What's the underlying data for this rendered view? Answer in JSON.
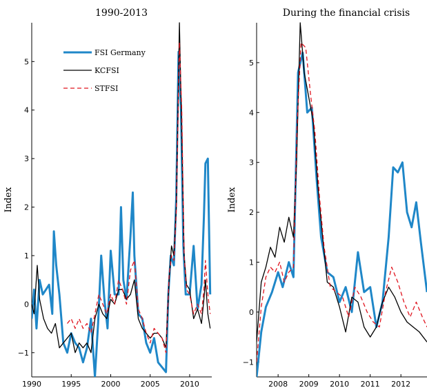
{
  "chart_data": [
    {
      "type": "line",
      "title": "1990-2013",
      "xlabel": "",
      "ylabel": "Index",
      "xlim": [
        1990,
        2012.8
      ],
      "ylim": [
        -1.5,
        5.8
      ],
      "xticks": [
        1990,
        1995,
        2000,
        2005,
        2010
      ],
      "yticks": [
        -1,
        0,
        1,
        2,
        3,
        4,
        5
      ],
      "ytick_labels": [
        "−1",
        "0",
        "1",
        "2",
        "3",
        "4",
        "5"
      ],
      "legend_position": "top-center",
      "series": [
        {
          "name": "FSI Germany",
          "color": "#1f87c8",
          "style": "solid-thick",
          "x": [
            1990.0,
            1990.3,
            1990.6,
            1991.0,
            1991.4,
            1991.8,
            1992.2,
            1992.6,
            1992.8,
            1993.1,
            1993.5,
            1994.0,
            1994.5,
            1995.0,
            1995.5,
            1996.0,
            1996.5,
            1997.0,
            1997.5,
            1998.0,
            1998.4,
            1998.8,
            1999.2,
            1999.6,
            2000.0,
            2000.5,
            2001.0,
            2001.3,
            2001.6,
            2002.0,
            2002.5,
            2002.8,
            2003.0,
            2003.5,
            2004.0,
            2004.5,
            2005.0,
            2005.5,
            2006.0,
            2006.5,
            2007.0,
            2007.3,
            2007.6,
            2008.0,
            2008.3,
            2008.6,
            2008.9,
            2009.2,
            2009.5,
            2010.0,
            2010.5,
            2011.0,
            2011.5,
            2011.8,
            2012.0,
            2012.3,
            2012.6
          ],
          "y": [
            -0.3,
            0.3,
            -0.5,
            0.5,
            0.2,
            0.3,
            0.4,
            -0.2,
            1.5,
            0.8,
            0.2,
            -0.8,
            -1.0,
            -0.6,
            -0.8,
            -0.9,
            -1.2,
            -0.9,
            -0.3,
            -1.5,
            -0.4,
            1.0,
            0.1,
            -0.5,
            1.1,
            0.2,
            0.2,
            2.0,
            0.5,
            0.1,
            1.4,
            2.3,
            1.0,
            -0.2,
            -0.3,
            -0.8,
            -1.0,
            -0.7,
            -1.2,
            -1.3,
            -1.4,
            0.2,
            1.0,
            0.8,
            2.2,
            5.2,
            4.0,
            1.2,
            0.2,
            0.2,
            1.2,
            -0.1,
            0.4,
            1.8,
            2.9,
            3.0,
            0.2
          ]
        },
        {
          "name": "KCFSI",
          "color": "#000000",
          "style": "solid-thin",
          "x": [
            1990.0,
            1990.3,
            1990.7,
            1991.0,
            1991.5,
            1992.0,
            1992.5,
            1993.0,
            1993.5,
            1994.0,
            1994.5,
            1995.0,
            1995.5,
            1996.0,
            1996.5,
            1997.0,
            1997.5,
            1998.0,
            1998.5,
            1999.0,
            1999.5,
            2000.0,
            2000.5,
            2001.0,
            2001.5,
            2002.0,
            2002.5,
            2003.0,
            2003.5,
            2004.0,
            2004.5,
            2005.0,
            2005.5,
            2006.0,
            2006.5,
            2007.0,
            2007.4,
            2007.7,
            2008.0,
            2008.3,
            2008.7,
            2009.0,
            2009.3,
            2009.6,
            2010.0,
            2010.5,
            2011.0,
            2011.5,
            2011.8,
            2012.0,
            2012.3,
            2012.6
          ],
          "y": [
            0.0,
            -0.2,
            0.8,
            0.1,
            -0.3,
            -0.5,
            -0.6,
            -0.4,
            -0.9,
            -0.8,
            -0.7,
            -0.6,
            -1.0,
            -0.8,
            -0.9,
            -0.8,
            -1.0,
            -0.3,
            0.0,
            -0.2,
            -0.3,
            0.1,
            0.0,
            0.3,
            0.3,
            0.1,
            0.2,
            0.5,
            -0.3,
            -0.5,
            -0.6,
            -0.7,
            -0.6,
            -0.6,
            -0.7,
            -0.9,
            0.5,
            1.2,
            1.0,
            2.0,
            5.8,
            3.5,
            1.0,
            0.4,
            0.3,
            -0.3,
            -0.1,
            -0.4,
            0.1,
            0.5,
            -0.2,
            -0.5
          ]
        },
        {
          "name": "STFSI",
          "color": "#e0141e",
          "style": "dashed",
          "x": [
            1994.5,
            1995.0,
            1995.5,
            1996.0,
            1996.5,
            1997.0,
            1997.5,
            1998.0,
            1998.5,
            1999.0,
            1999.5,
            2000.0,
            2000.5,
            2001.0,
            2001.5,
            2002.0,
            2002.5,
            2003.0,
            2003.5,
            2004.0,
            2004.5,
            2005.0,
            2005.5,
            2006.0,
            2006.5,
            2007.0,
            2007.4,
            2007.7,
            2008.0,
            2008.3,
            2008.7,
            2009.0,
            2009.3,
            2009.6,
            2010.0,
            2010.5,
            2011.0,
            2011.5,
            2011.8,
            2012.0,
            2012.3,
            2012.6
          ],
          "y": [
            -0.4,
            -0.3,
            -0.5,
            -0.3,
            -0.5,
            -0.4,
            -0.6,
            -0.2,
            0.2,
            0.0,
            -0.2,
            0.2,
            0.0,
            0.5,
            0.3,
            0.0,
            0.7,
            0.9,
            -0.1,
            -0.3,
            -0.6,
            -0.8,
            -0.5,
            -0.6,
            -0.7,
            -1.0,
            0.6,
            1.0,
            0.9,
            1.9,
            5.4,
            4.0,
            1.0,
            0.3,
            0.2,
            -0.2,
            0.0,
            -0.2,
            0.3,
            0.9,
            0.2,
            -0.2
          ]
        }
      ]
    },
    {
      "type": "line",
      "title": "During the financial crisis",
      "xlabel": "",
      "ylabel": "Index",
      "xlim": [
        2007.3,
        2012.85
      ],
      "ylim": [
        -1.3,
        5.8
      ],
      "xticks": [
        2008,
        2009,
        2010,
        2011,
        2012
      ],
      "yticks": [
        -1,
        0,
        1,
        2,
        3,
        4,
        5
      ],
      "ytick_labels": [
        "−1",
        "0",
        "1",
        "2",
        "3",
        "4",
        "5"
      ],
      "series": [
        {
          "name": "FSI Germany",
          "color": "#1f87c8",
          "style": "solid-thick",
          "x": [
            2007.3,
            2007.45,
            2007.6,
            2007.8,
            2008.0,
            2008.15,
            2008.35,
            2008.5,
            2008.65,
            2008.8,
            2008.95,
            2009.1,
            2009.25,
            2009.4,
            2009.6,
            2009.8,
            2010.0,
            2010.2,
            2010.4,
            2010.6,
            2010.8,
            2011.0,
            2011.2,
            2011.4,
            2011.6,
            2011.75,
            2011.9,
            2012.05,
            2012.2,
            2012.35,
            2012.5,
            2012.65,
            2012.85
          ],
          "y": [
            -1.3,
            -0.4,
            0.1,
            0.4,
            0.8,
            0.5,
            1.0,
            0.7,
            4.8,
            5.2,
            4.0,
            4.1,
            2.7,
            1.5,
            0.8,
            0.7,
            0.2,
            0.5,
            0.0,
            1.2,
            0.4,
            0.5,
            -0.3,
            0.2,
            1.5,
            2.9,
            2.8,
            3.0,
            2.0,
            1.7,
            2.2,
            1.4,
            0.4
          ]
        },
        {
          "name": "KCFSI",
          "color": "#000000",
          "style": "solid-thin",
          "x": [
            2007.3,
            2007.45,
            2007.6,
            2007.75,
            2007.9,
            2008.05,
            2008.2,
            2008.35,
            2008.5,
            2008.6,
            2008.72,
            2008.85,
            2009.0,
            2009.15,
            2009.3,
            2009.45,
            2009.6,
            2009.8,
            2010.0,
            2010.2,
            2010.4,
            2010.6,
            2010.8,
            2011.0,
            2011.2,
            2011.4,
            2011.6,
            2011.8,
            2012.0,
            2012.2,
            2012.4,
            2012.6,
            2012.85
          ],
          "y": [
            -0.6,
            0.6,
            0.9,
            1.3,
            1.1,
            1.7,
            1.4,
            1.9,
            1.5,
            3.0,
            5.8,
            4.8,
            4.3,
            3.8,
            2.5,
            1.5,
            0.6,
            0.5,
            0.1,
            -0.4,
            0.3,
            0.2,
            -0.3,
            -0.5,
            -0.3,
            0.2,
            0.5,
            0.3,
            0.0,
            -0.2,
            -0.3,
            -0.4,
            -0.6
          ]
        },
        {
          "name": "STFSI",
          "color": "#e0141e",
          "style": "dashed",
          "x": [
            2007.3,
            2007.45,
            2007.6,
            2007.75,
            2007.9,
            2008.05,
            2008.2,
            2008.35,
            2008.5,
            2008.62,
            2008.75,
            2008.9,
            2009.05,
            2009.2,
            2009.35,
            2009.5,
            2009.7,
            2009.9,
            2010.1,
            2010.3,
            2010.5,
            2010.7,
            2010.9,
            2011.1,
            2011.3,
            2011.5,
            2011.7,
            2011.9,
            2012.1,
            2012.3,
            2012.5,
            2012.7,
            2012.85
          ],
          "y": [
            -1.0,
            0.1,
            0.7,
            0.9,
            0.8,
            1.0,
            0.6,
            0.8,
            0.9,
            3.8,
            5.4,
            5.3,
            4.4,
            3.6,
            2.3,
            1.3,
            0.5,
            0.4,
            0.3,
            -0.1,
            0.5,
            0.3,
            0.0,
            -0.2,
            -0.3,
            0.4,
            0.9,
            0.6,
            0.2,
            -0.1,
            0.2,
            -0.1,
            -0.3
          ]
        }
      ]
    }
  ]
}
